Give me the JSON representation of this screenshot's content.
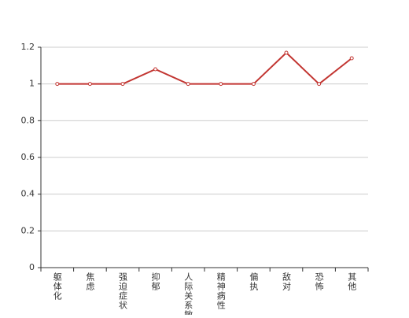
{
  "chart_data": {
    "type": "line",
    "categories": [
      "躯体化",
      "焦虑",
      "强迫症状",
      "抑郁",
      "人际关系敏感",
      "精神病性",
      "偏执",
      "敌对",
      "恐怖",
      "其他"
    ],
    "values": [
      1,
      1,
      1,
      1.08,
      1,
      1,
      1,
      1.17,
      1,
      1.14
    ],
    "color": "#c23531",
    "ylim": [
      0,
      1.2
    ],
    "yticks": [
      0,
      0.2,
      0.4,
      0.6,
      0.8,
      1,
      1.2
    ],
    "grid": true
  }
}
